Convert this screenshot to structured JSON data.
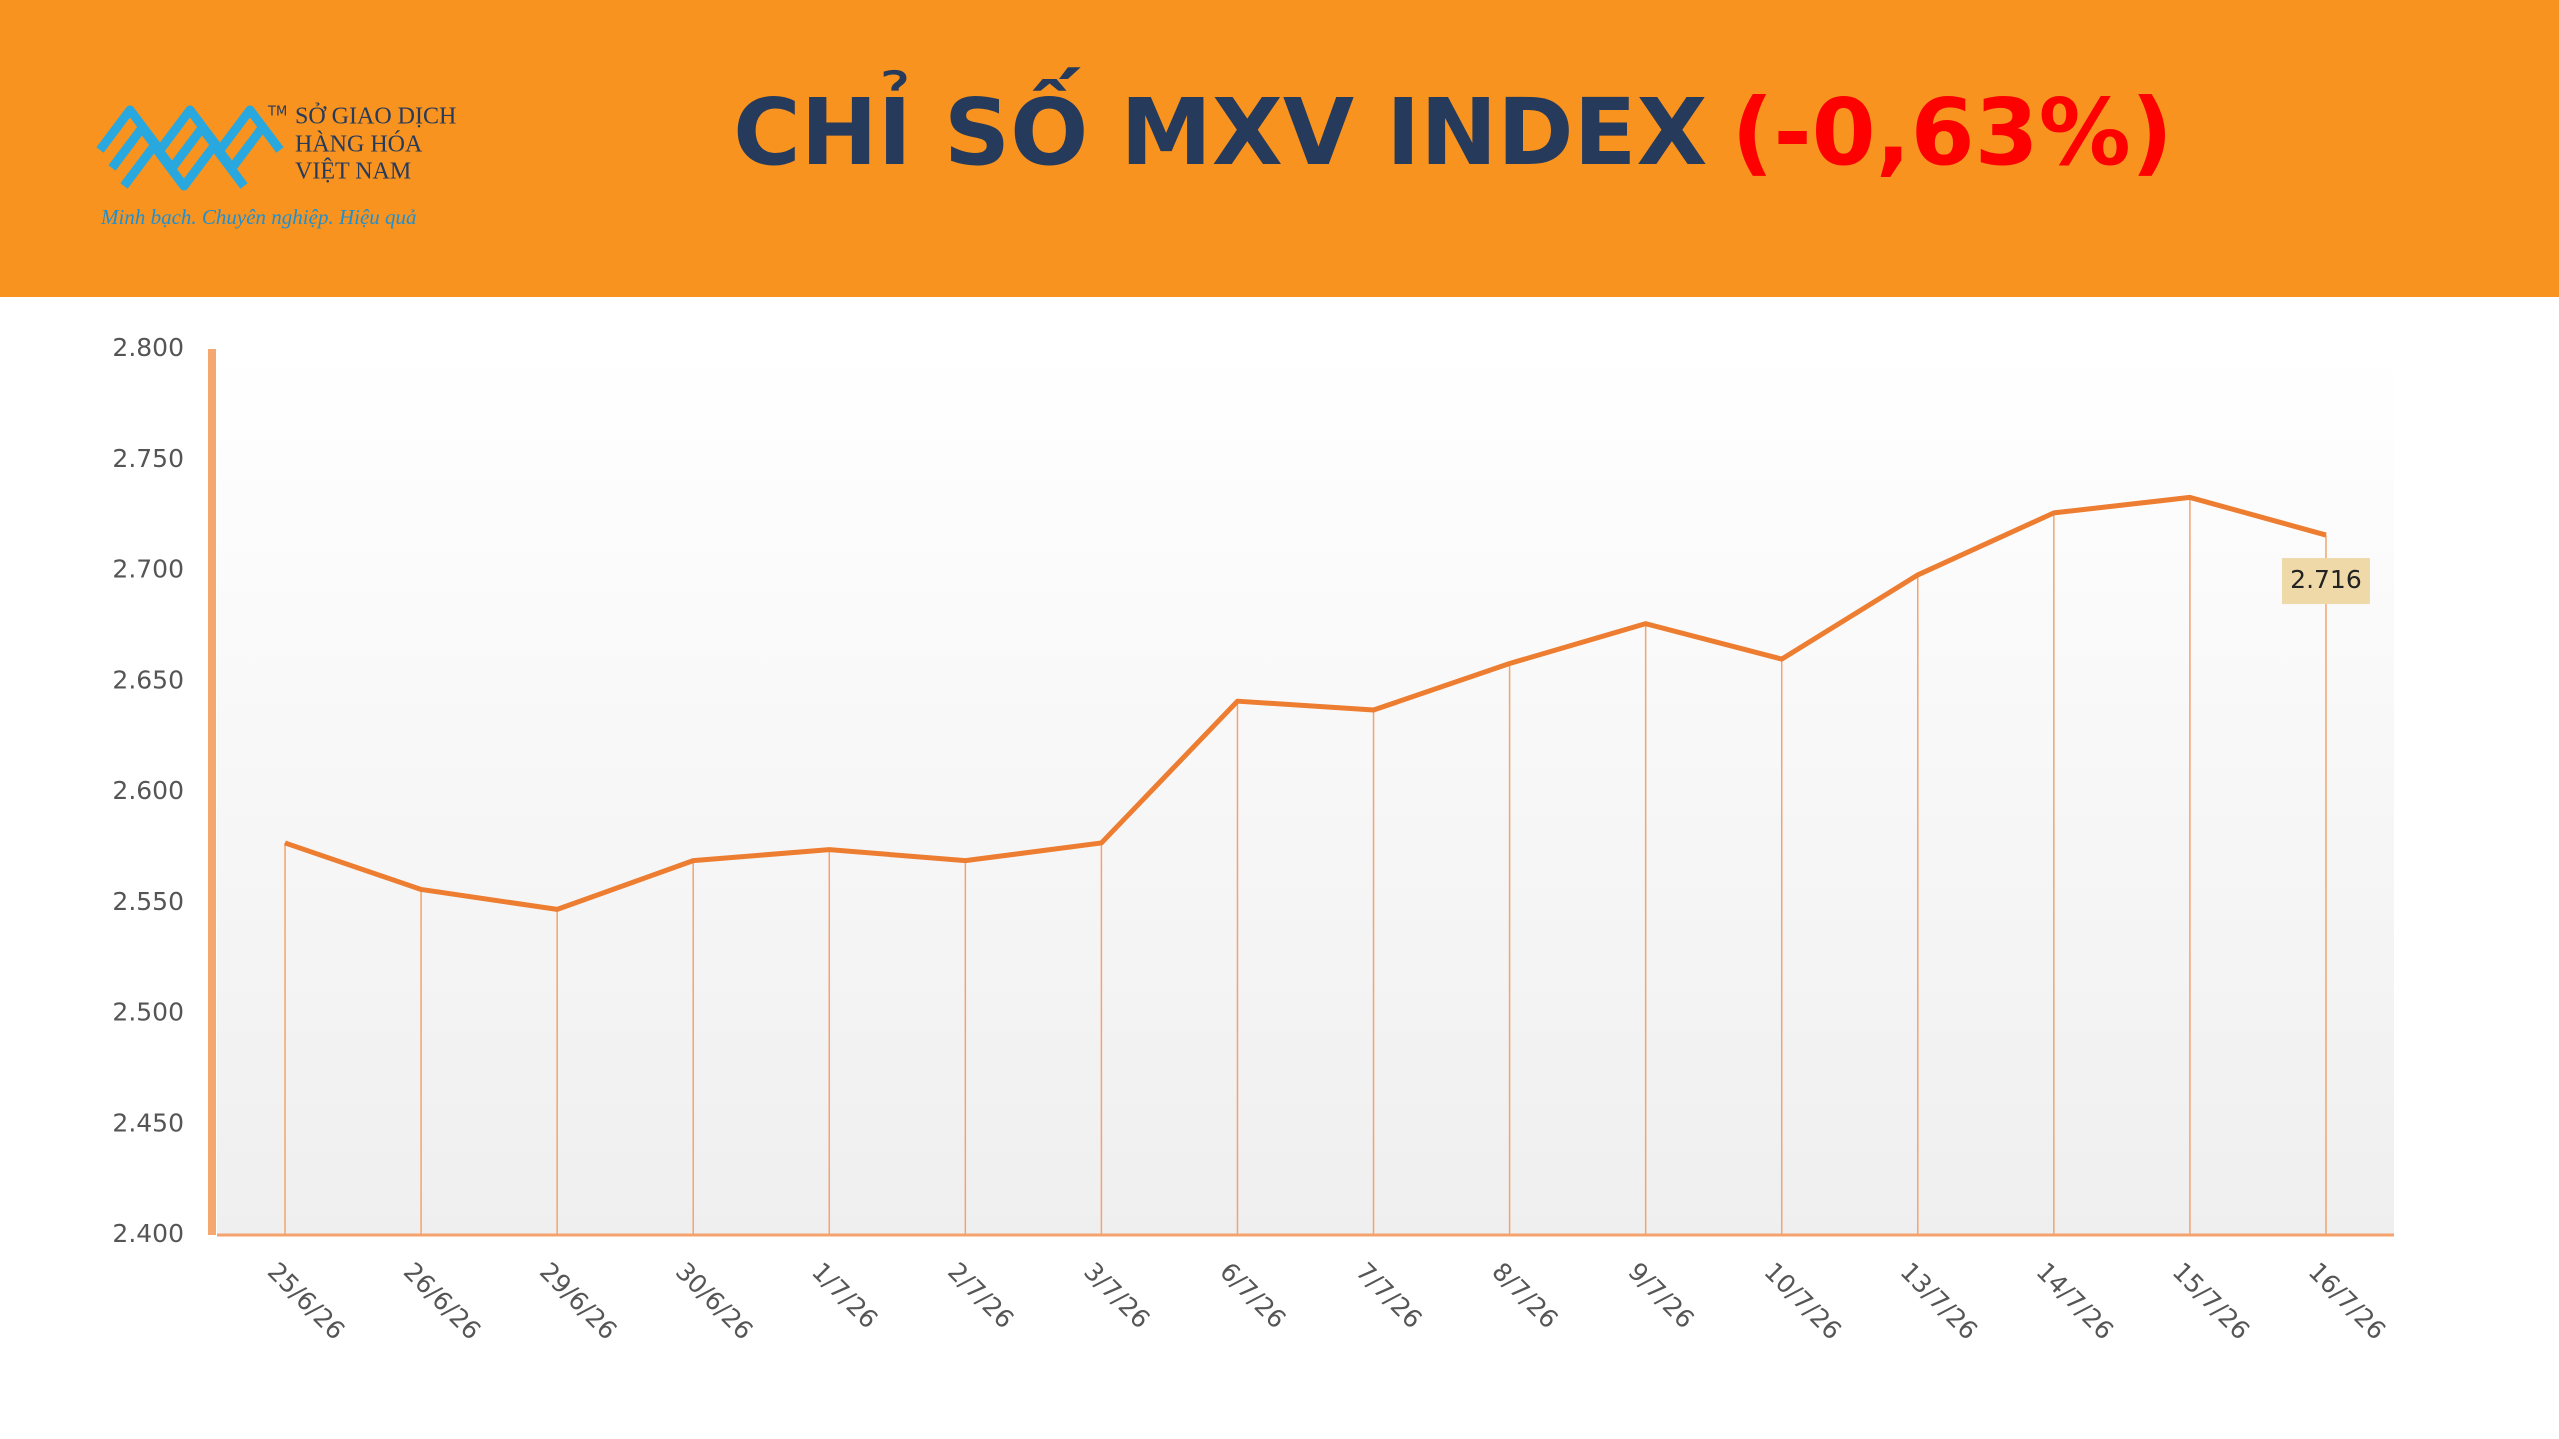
{
  "header": {
    "logo_trademark": "TM",
    "logo_lines": [
      "SỞ GIAO DỊCH",
      "HÀNG HÓA",
      "VIỆT NAM"
    ],
    "slogan": "Minh bạch. Chuyên nghiệp. Hiệu quả"
  },
  "chart_data": {
    "type": "line",
    "title": "CHỈ SỐ MXV INDEX",
    "title_change": "(-0,63%)",
    "categories": [
      "25/6/26",
      "26/6/26",
      "29/6/26",
      "30/6/26",
      "1/7/26",
      "2/7/26",
      "3/7/26",
      "6/7/26",
      "7/7/26",
      "8/7/26",
      "9/7/26",
      "10/7/26",
      "13/7/26",
      "14/7/26",
      "15/7/26",
      "16/7/26"
    ],
    "values": [
      2577,
      2556,
      2547,
      2569,
      2574,
      2569,
      2577,
      2641,
      2637,
      2658,
      2676,
      2660,
      2698,
      2726,
      2733,
      2716
    ],
    "value_labels": [
      null,
      null,
      null,
      null,
      null,
      null,
      null,
      null,
      null,
      null,
      null,
      null,
      null,
      null,
      null,
      "2.716"
    ],
    "color": "#ed7d31",
    "ylim": [
      2400,
      2800
    ],
    "yticks": [
      {
        "value": 2400,
        "label": "2.400"
      },
      {
        "value": 2450,
        "label": "2.450"
      },
      {
        "value": 2500,
        "label": "2.500"
      },
      {
        "value": 2550,
        "label": "2.550"
      },
      {
        "value": 2600,
        "label": "2.600"
      },
      {
        "value": 2650,
        "label": "2.650"
      },
      {
        "value": 2700,
        "label": "2.700"
      },
      {
        "value": 2750,
        "label": "2.750"
      },
      {
        "value": 2800,
        "label": "2.800"
      }
    ],
    "grid": false
  }
}
